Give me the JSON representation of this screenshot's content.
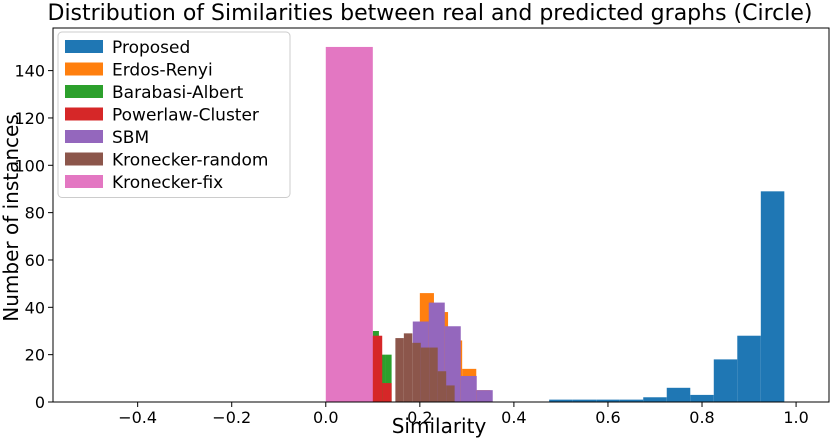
{
  "chart_data": {
    "type": "bar",
    "title": "Distribution of Similarities between real and predicted graphs (Circle)",
    "xlabel": "Similarity",
    "ylabel": "Number of instances",
    "xlim": [
      -0.58,
      1.07
    ],
    "ylim": [
      0,
      158
    ],
    "xticks": [
      -0.4,
      -0.2,
      0.0,
      0.2,
      0.4,
      0.6,
      0.8,
      1.0
    ],
    "xtick_labels": [
      "−0.4",
      "−0.2",
      "0.0",
      "0.2",
      "0.4",
      "0.6",
      "0.8",
      "1.0"
    ],
    "yticks": [
      0,
      20,
      40,
      60,
      80,
      100,
      120,
      140
    ],
    "ytick_labels": [
      "0",
      "20",
      "40",
      "60",
      "80",
      "100",
      "120",
      "140"
    ],
    "grid": false,
    "legend_position": "top-left",
    "series": [
      {
        "name": "Proposed",
        "color": "#1f77b4",
        "bins": [
          [
            0.475,
            0.525,
            1
          ],
          [
            0.525,
            0.575,
            1
          ],
          [
            0.575,
            0.625,
            1
          ],
          [
            0.625,
            0.675,
            1
          ],
          [
            0.675,
            0.725,
            2
          ],
          [
            0.725,
            0.775,
            6
          ],
          [
            0.775,
            0.825,
            3
          ],
          [
            0.825,
            0.875,
            18
          ],
          [
            0.875,
            0.925,
            28
          ],
          [
            0.925,
            0.975,
            89
          ]
        ]
      },
      {
        "name": "Erdos-Renyi",
        "color": "#ff7f0e",
        "bins": [
          [
            0.2,
            0.23,
            46
          ],
          [
            0.23,
            0.26,
            38
          ],
          [
            0.26,
            0.29,
            26
          ],
          [
            0.29,
            0.32,
            14
          ],
          [
            0.32,
            0.35,
            5
          ]
        ]
      },
      {
        "name": "Barabasi-Albert",
        "color": "#2ca02c",
        "bins": [
          [
            0.1,
            0.113,
            30
          ],
          [
            0.113,
            0.126,
            20
          ],
          [
            0.126,
            0.14,
            20
          ]
        ]
      },
      {
        "name": "Powerlaw-Cluster",
        "color": "#d62728",
        "bins": [
          [
            0.098,
            0.12,
            28
          ],
          [
            0.12,
            0.14,
            8
          ]
        ]
      },
      {
        "name": "SBM",
        "color": "#9467bd",
        "bins": [
          [
            0.185,
            0.219,
            34
          ],
          [
            0.219,
            0.253,
            42
          ],
          [
            0.253,
            0.287,
            32
          ],
          [
            0.287,
            0.321,
            11
          ],
          [
            0.321,
            0.355,
            5
          ]
        ]
      },
      {
        "name": "Kronecker-random",
        "color": "#8c564b",
        "bins": [
          [
            0.148,
            0.166,
            27
          ],
          [
            0.166,
            0.184,
            29
          ],
          [
            0.184,
            0.202,
            25
          ],
          [
            0.202,
            0.22,
            23
          ],
          [
            0.22,
            0.238,
            23
          ],
          [
            0.238,
            0.256,
            13
          ],
          [
            0.256,
            0.274,
            7
          ]
        ]
      },
      {
        "name": "Kronecker-fix",
        "color": "#e377c2",
        "bins": [
          [
            0.0,
            0.1,
            150
          ]
        ]
      }
    ]
  }
}
